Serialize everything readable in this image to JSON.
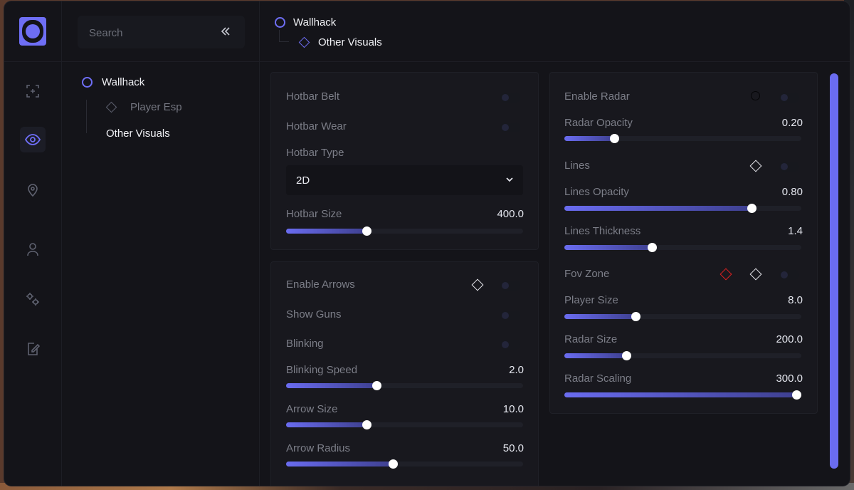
{
  "search": {
    "placeholder": "Search"
  },
  "collapse_icon": "double-chevron-left-icon",
  "rail_icons": [
    "aim-icon",
    "eye-icon",
    "map-pin-icon",
    "user-icon",
    "settings-icon",
    "edit-config-icon"
  ],
  "tree": {
    "root": "Wallhack",
    "children": [
      "Player Esp",
      "Other Visuals"
    ]
  },
  "breadcrumb": {
    "root": "Wallhack",
    "child": "Other Visuals"
  },
  "colors": {
    "accent": "#6e6ef5",
    "keybind_active": "#e02020",
    "panel": "#18181e"
  },
  "left_panel_1": {
    "hotbar_belt": "Hotbar Belt",
    "hotbar_wear": "Hotbar Wear",
    "hotbar_type": "Hotbar Type",
    "hotbar_type_value": "2D",
    "hotbar_size": {
      "label": "Hotbar Size",
      "value": "400.0",
      "fraction": 0.34
    }
  },
  "left_panel_2": {
    "enable_arrows": "Enable Arrows",
    "show_guns": "Show Guns",
    "blinking": "Blinking",
    "blinking_speed": {
      "label": "Blinking Speed",
      "value": "2.0",
      "fraction": 0.38
    },
    "arrow_size": {
      "label": "Arrow Size",
      "value": "10.0",
      "fraction": 0.34
    },
    "arrow_radius": {
      "label": "Arrow Radius",
      "value": "50.0",
      "fraction": 0.45
    }
  },
  "right_panel": {
    "enable_radar": "Enable Radar",
    "radar_opacity": {
      "label": "Radar Opacity",
      "value": "0.20",
      "fraction": 0.21
    },
    "lines": "Lines",
    "lines_opacity": {
      "label": "Lines Opacity",
      "value": "0.80",
      "fraction": 0.79
    },
    "lines_thickness": {
      "label": "Lines Thickness",
      "value": "1.4",
      "fraction": 0.37
    },
    "fov_zone": "Fov Zone",
    "player_size": {
      "label": "Player Size",
      "value": "8.0",
      "fraction": 0.3
    },
    "radar_size": {
      "label": "Radar Size",
      "value": "200.0",
      "fraction": 0.26
    },
    "radar_scaling": {
      "label": "Radar Scaling",
      "value": "300.0",
      "fraction": 0.98
    }
  }
}
